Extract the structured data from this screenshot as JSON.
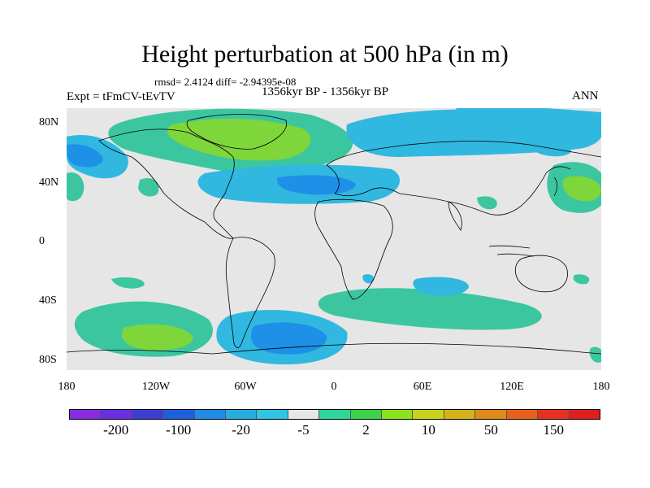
{
  "title": "Height perturbation at 500 hPa (in m)",
  "stats": "rmsd= 2.4124 diff= -2.94395e-08",
  "experiment": "Expt = tFmCV-tEvTV",
  "period": "1356kyr BP - 1356kyr BP",
  "season": "ANN",
  "lat_ticks": [
    "80N",
    "40N",
    "0",
    "40S",
    "80S"
  ],
  "lon_ticks": [
    "180",
    "120W",
    "60W",
    "0",
    "60E",
    "120E",
    "180"
  ],
  "colorbar": {
    "colors": [
      "#8a2be2",
      "#6a2ee0",
      "#3d3dd6",
      "#1e5fe0",
      "#1f8de8",
      "#27aee0",
      "#2ec6e6",
      "#e6e6e6",
      "#2fd69a",
      "#3cd24a",
      "#8be21e",
      "#c8d41a",
      "#d6b21a",
      "#e08a1a",
      "#e8601a",
      "#e8301e",
      "#e01e1e"
    ],
    "labels": [
      "-200",
      "-100",
      "-20",
      "-5",
      "2",
      "10",
      "50",
      "150"
    ]
  },
  "map": {
    "background_color": "#e6e6e6",
    "positive_color": "#3cc6a0",
    "strong_positive_color": "#7fd63a",
    "negative_color": "#30b8e0",
    "strong_negative_color": "#1e90e8"
  }
}
